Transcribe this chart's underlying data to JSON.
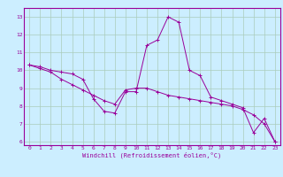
{
  "xlabel": "Windchill (Refroidissement éolien,°C)",
  "bg_color": "#cceeff",
  "line_color": "#990099",
  "grid_color": "#aaccbb",
  "x_values": [
    0,
    1,
    2,
    3,
    4,
    5,
    6,
    7,
    8,
    9,
    10,
    11,
    12,
    13,
    14,
    15,
    16,
    17,
    18,
    19,
    20,
    21,
    22,
    23
  ],
  "series1": [
    10.3,
    10.2,
    10.0,
    9.9,
    9.8,
    9.5,
    8.4,
    7.7,
    7.6,
    8.8,
    8.8,
    11.4,
    11.7,
    13.0,
    12.7,
    10.0,
    9.7,
    8.5,
    8.3,
    8.1,
    7.9,
    6.5,
    7.3,
    6.0
  ],
  "series2": [
    10.3,
    10.1,
    9.9,
    9.5,
    9.2,
    8.9,
    8.6,
    8.3,
    8.1,
    8.9,
    9.0,
    9.0,
    8.8,
    8.6,
    8.5,
    8.4,
    8.3,
    8.2,
    8.1,
    8.0,
    7.8,
    7.5,
    7.0,
    6.0
  ],
  "xlim": [
    -0.5,
    23.5
  ],
  "ylim": [
    5.8,
    13.5
  ],
  "yticks": [
    6,
    7,
    8,
    9,
    10,
    11,
    12,
    13
  ],
  "xticks": [
    0,
    1,
    2,
    3,
    4,
    5,
    6,
    7,
    8,
    9,
    10,
    11,
    12,
    13,
    14,
    15,
    16,
    17,
    18,
    19,
    20,
    21,
    22,
    23
  ],
  "tick_fontsize": 4.5,
  "xlabel_fontsize": 5.0
}
